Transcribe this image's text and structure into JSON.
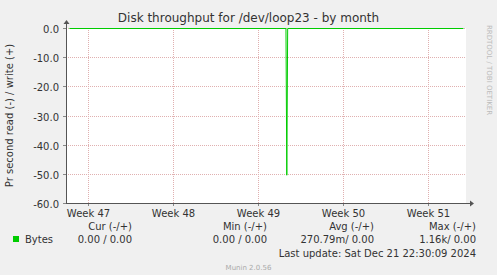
{
  "chart_data": {
    "type": "line",
    "title": "Disk throughput for /dev/loop23 - by month",
    "y_label": "Pr second read (-) / write (+)",
    "x": [
      46.78,
      49.33,
      49.34,
      49.35,
      51.42
    ],
    "series": [
      {
        "name": "Bytes",
        "color": "#00cc00",
        "values": [
          0,
          0,
          -50.3,
          0,
          0
        ]
      }
    ],
    "xlim": [
      46.74,
      51.45
    ],
    "xticks": [
      {
        "value": 47,
        "label": "Week 47"
      },
      {
        "value": 48,
        "label": "Week 48"
      },
      {
        "value": 49,
        "label": "Week 49"
      },
      {
        "value": 50,
        "label": "Week 50"
      },
      {
        "value": 51,
        "label": "Week 51"
      }
    ],
    "ylim": [
      -60,
      0
    ],
    "yticks": [
      {
        "value": -60,
        "label": "-60.0"
      },
      {
        "value": -50,
        "label": "-50.0"
      },
      {
        "value": -40,
        "label": "-40.0"
      },
      {
        "value": -30,
        "label": "-30.0"
      },
      {
        "value": -20,
        "label": "-20.0"
      },
      {
        "value": -10,
        "label": "-10.0"
      },
      {
        "value": 0,
        "label": "0.0"
      }
    ],
    "grid": true,
    "legend_headers": [
      "Cur (-/+)",
      "Min (-/+)",
      "Avg (-/+)",
      "Max (-/+)"
    ],
    "legend_values": [
      [
        "0.00 /  0.00",
        "0.00 /  0.00",
        "270.79m/  0.00",
        "1.16k/  0.00"
      ]
    ],
    "footer": "Last update: Sat Dec 21 22:30:09 2024",
    "credit": "Munin 2.0.56",
    "side_text": "RRDTOOL / TOBI OETIKER"
  }
}
